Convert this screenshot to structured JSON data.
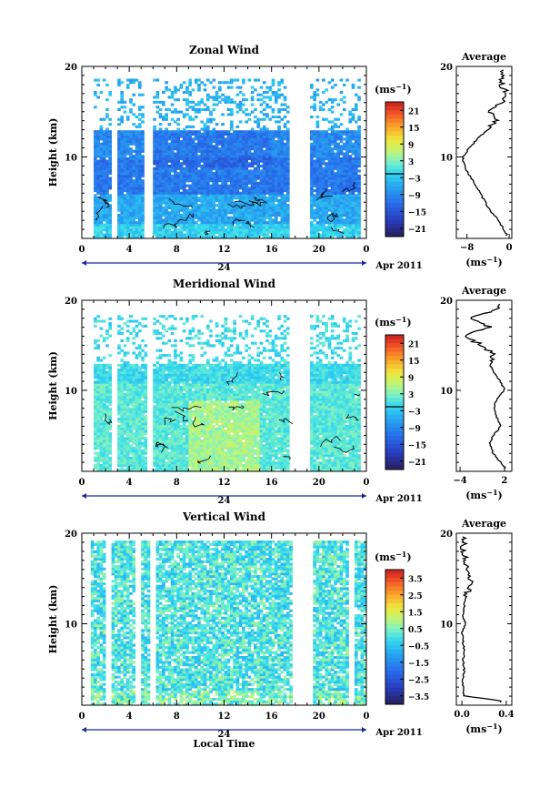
{
  "panels": [
    {
      "title": "Zonal Wind",
      "ylabel": "Height (km)",
      "colorbar_unit": "(ms",
      "colorbar_exp": "−1",
      "colorbar_ticks": [
        "21",
        "15",
        "9",
        "3",
        "−3",
        "−9",
        "−15",
        "−21"
      ],
      "date_label": "Apr 2011",
      "day_label": "24",
      "avg_title": "Average",
      "avg_unit": "(ms",
      "avg_exp": "−1",
      "avg_xticks": [
        "−8",
        "0"
      ],
      "avg_yticks": [
        "20",
        "10"
      ]
    },
    {
      "title": "Meridional Wind",
      "ylabel": "Height (km)",
      "colorbar_unit": "(ms",
      "colorbar_exp": "−1",
      "colorbar_ticks": [
        "21",
        "15",
        "9",
        "3",
        "−3",
        "−9",
        "−15",
        "−21"
      ],
      "date_label": "Apr 2011",
      "day_label": "24",
      "avg_title": "Average",
      "avg_unit": "(ms",
      "avg_exp": "−1",
      "avg_xticks": [
        "−4",
        "2"
      ],
      "avg_yticks": [
        "20",
        "10"
      ]
    },
    {
      "title": "Vertical Wind",
      "ylabel": "Height (km)",
      "colorbar_unit": "(ms",
      "colorbar_exp": "−1",
      "colorbar_ticks": [
        "3.5",
        "2.5",
        "1.5",
        "0.5",
        "−0.5",
        "−1.5",
        "−2.5",
        "−3.5"
      ],
      "date_label": "Apr 2011",
      "day_label": "24",
      "avg_title": "Average",
      "avg_unit": "(ms",
      "avg_exp": "−1",
      "avg_xticks": [
        "0.0",
        "0.4"
      ],
      "avg_yticks": [
        "20",
        "10"
      ]
    }
  ],
  "xlabel_bottom": "Local Time",
  "chart_data": [
    {
      "type": "heatmap",
      "title": "Zonal Wind",
      "xlabel": "",
      "ylabel": "Height (km)",
      "xlim": [
        0,
        24
      ],
      "ylim": [
        1,
        20
      ],
      "xticks": [
        "0",
        "4",
        "8",
        "12",
        "16",
        "20",
        "0"
      ],
      "yticks": [
        "20",
        "10"
      ],
      "colorbar": {
        "unit": "ms−1",
        "range": [
          -24,
          24
        ],
        "ticks": [
          21,
          15,
          9,
          3,
          -3,
          -9,
          -15,
          -21
        ]
      },
      "description_levels": {
        "heights_km": [
          2,
          4,
          6,
          8,
          10,
          12,
          14,
          16,
          18
        ],
        "values": [
          -3,
          -6,
          -9,
          -12,
          -9,
          -8,
          -6,
          -4,
          -2
        ]
      },
      "average_profile": {
        "title": "Average",
        "xlim": [
          -10,
          0.5
        ],
        "xticks": [
          -8,
          0
        ],
        "heights_km": [
          1.5,
          2,
          3,
          4,
          5,
          6,
          7,
          8,
          9,
          10,
          11,
          12,
          13,
          14,
          15,
          16,
          17,
          18,
          19
        ],
        "values": [
          -0.5,
          -1.0,
          -2.0,
          -3.5,
          -4.5,
          -5.5,
          -6.5,
          -7.5,
          -8.5,
          -8.8,
          -7.5,
          -6.0,
          -4.0,
          -2.5,
          -3.5,
          -1.5,
          -0.5,
          -1.5,
          -1.0
        ]
      }
    },
    {
      "type": "heatmap",
      "title": "Meridional Wind",
      "xlabel": "",
      "ylabel": "Height (km)",
      "xlim": [
        0,
        24
      ],
      "ylim": [
        1,
        20
      ],
      "xticks": [
        "0",
        "4",
        "8",
        "12",
        "16",
        "20",
        "0"
      ],
      "yticks": [
        "20",
        "10"
      ],
      "colorbar": {
        "unit": "ms−1",
        "range": [
          -24,
          24
        ],
        "ticks": [
          21,
          15,
          9,
          3,
          -3,
          -9,
          -15,
          -21
        ]
      },
      "average_profile": {
        "title": "Average",
        "xlim": [
          -4.5,
          3
        ],
        "xticks": [
          -4,
          2
        ],
        "heights_km": [
          1.5,
          2,
          3,
          4,
          5,
          6,
          7,
          8,
          9,
          10,
          11,
          12,
          13,
          14,
          15,
          16,
          17,
          18,
          19
        ],
        "values": [
          2.0,
          1.5,
          0.5,
          0.0,
          0.5,
          1.5,
          1.0,
          0.5,
          1.0,
          2.0,
          1.5,
          0.5,
          0.0,
          0.5,
          -1.0,
          -3.5,
          0.0,
          -2.5,
          1.0
        ]
      }
    },
    {
      "type": "heatmap",
      "title": "Vertical Wind",
      "xlabel": "Local Time",
      "ylabel": "Height (km)",
      "xlim": [
        0,
        24
      ],
      "ylim": [
        1,
        20
      ],
      "xticks": [
        "0",
        "4",
        "8",
        "12",
        "16",
        "20",
        "0"
      ],
      "yticks": [
        "20",
        "10"
      ],
      "colorbar": {
        "unit": "ms−1",
        "range": [
          -4,
          4
        ],
        "ticks": [
          3.5,
          2.5,
          1.5,
          0.5,
          -0.5,
          -1.5,
          -2.5,
          -3.5
        ]
      },
      "average_profile": {
        "title": "Average",
        "xlim": [
          -0.05,
          0.45
        ],
        "xticks": [
          0.0,
          0.4
        ],
        "heights_km": [
          1.5,
          2,
          3,
          4,
          5,
          6,
          7,
          8,
          9,
          10,
          11,
          12,
          13,
          14,
          15,
          16,
          17,
          18,
          19
        ],
        "values": [
          0.35,
          0.02,
          0.01,
          0.01,
          0.02,
          0.01,
          0.02,
          0.01,
          0.0,
          0.03,
          0.01,
          0.02,
          0.04,
          0.06,
          0.08,
          0.05,
          0.03,
          0.02,
          0.01
        ]
      }
    }
  ]
}
